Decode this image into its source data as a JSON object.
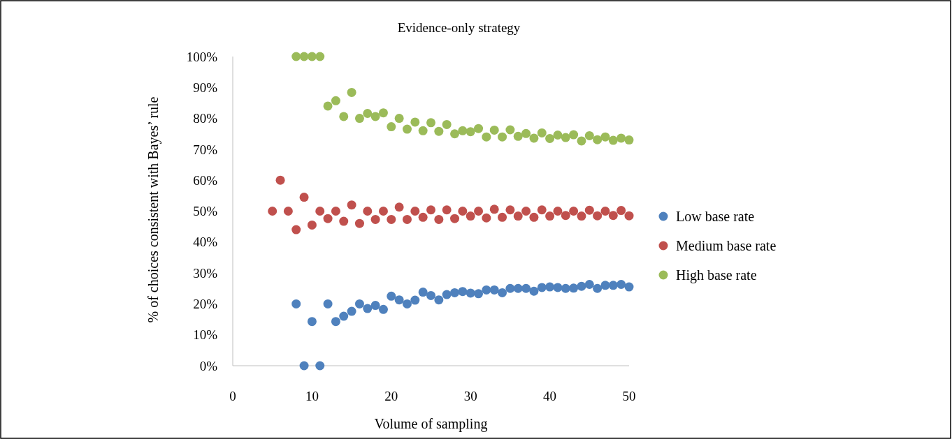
{
  "chart_data": {
    "type": "scatter",
    "title": "Evidence-only strategy",
    "xlabel": "Volume of sampling",
    "ylabel": "% of choices consistent with Bayes’ rule",
    "xlim": [
      0,
      50
    ],
    "xticks": [
      0,
      10,
      20,
      30,
      40,
      50
    ],
    "ylim": [
      0,
      100
    ],
    "yticks": [
      {
        "value": 0,
        "label": "0%"
      },
      {
        "value": 10,
        "label": "10%"
      },
      {
        "value": 20,
        "label": "20%"
      },
      {
        "value": 30,
        "label": "30%"
      },
      {
        "value": 40,
        "label": "40%"
      },
      {
        "value": 50,
        "label": "50%"
      },
      {
        "value": 60,
        "label": "60%"
      },
      {
        "value": 70,
        "label": "70%"
      },
      {
        "value": 80,
        "label": "80%"
      },
      {
        "value": 90,
        "label": "90%"
      },
      {
        "value": 100,
        "label": "100%"
      }
    ],
    "grid": false,
    "legend": "right",
    "marker": "circle",
    "series": [
      {
        "name": "Low base rate",
        "color": "#4f81bd",
        "x": [
          8,
          9,
          10,
          11,
          12,
          13,
          14,
          15,
          16,
          17,
          18,
          19,
          20,
          21,
          22,
          23,
          24,
          25,
          26,
          27,
          28,
          29,
          30,
          31,
          32,
          33,
          34,
          35,
          36,
          37,
          38,
          39,
          40,
          41,
          42,
          43,
          44,
          45,
          46,
          47,
          48,
          49,
          50
        ],
        "values": [
          20,
          0,
          14.3,
          0,
          20,
          14.3,
          16,
          17.6,
          20,
          18.5,
          19.5,
          18.2,
          22.5,
          21.3,
          20,
          21.2,
          23.8,
          22.7,
          21.3,
          23,
          23.6,
          24,
          23.5,
          23.3,
          24.5,
          24.5,
          23.6,
          25,
          25,
          25,
          24.1,
          25.3,
          25.5,
          25.3,
          25,
          25.1,
          25.7,
          26.3,
          25,
          26,
          26,
          26.3,
          25.5
        ]
      },
      {
        "name": "Medium base rate",
        "color": "#c0504d",
        "x": [
          5,
          6,
          7,
          8,
          9,
          10,
          11,
          12,
          13,
          14,
          15,
          16,
          17,
          18,
          19,
          20,
          21,
          22,
          23,
          24,
          25,
          26,
          27,
          28,
          29,
          30,
          31,
          32,
          33,
          34,
          35,
          36,
          37,
          38,
          39,
          40,
          41,
          42,
          43,
          44,
          45,
          46,
          47,
          48,
          49,
          50
        ],
        "values": [
          50,
          60,
          50,
          44,
          54.5,
          45.5,
          50,
          47.6,
          50,
          46.7,
          52,
          46,
          50,
          47.3,
          50,
          47.3,
          51.3,
          47.3,
          50,
          48,
          50.4,
          47.3,
          50.4,
          47.6,
          50,
          48.4,
          50,
          47.8,
          50.6,
          48,
          50.4,
          48.4,
          50,
          48,
          50.4,
          48.4,
          50,
          48.6,
          50,
          48.4,
          50.3,
          48.5,
          50,
          48.6,
          50.2,
          48.5
        ]
      },
      {
        "name": "High base rate",
        "color": "#9bbb59",
        "x": [
          8,
          9,
          10,
          11,
          12,
          13,
          14,
          15,
          16,
          17,
          18,
          19,
          20,
          21,
          22,
          23,
          24,
          25,
          26,
          27,
          28,
          29,
          30,
          31,
          32,
          33,
          34,
          35,
          36,
          37,
          38,
          39,
          40,
          41,
          42,
          43,
          44,
          45,
          46,
          47,
          48,
          49,
          50
        ],
        "values": [
          100,
          100,
          100,
          100,
          84,
          85.7,
          80.6,
          88.4,
          80,
          81.6,
          80.6,
          81.8,
          77.3,
          80,
          76.5,
          78.8,
          76,
          78.6,
          75.8,
          78,
          75,
          76,
          75.7,
          76.7,
          74,
          76.2,
          74,
          76.3,
          74.2,
          75.1,
          73.6,
          75.3,
          73.5,
          74.6,
          73.8,
          74.7,
          72.7,
          74.4,
          73.1,
          74,
          72.9,
          73.6,
          73
        ]
      }
    ]
  }
}
